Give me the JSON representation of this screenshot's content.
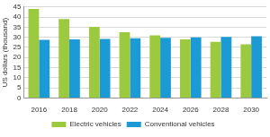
{
  "chart_data": {
    "type": "bar",
    "y_label": "US dollars (thousand)",
    "categories": [
      "2016",
      "2018",
      "2020",
      "2022",
      "2024",
      "2026",
      "2028",
      "2030"
    ],
    "series": [
      {
        "name": "Electric vehicles",
        "color": "#9bca3e",
        "values": [
          44,
          39,
          35.2,
          32.5,
          31,
          29,
          27.8,
          26.5
        ]
      },
      {
        "name": "Conventional vehicles",
        "color": "#1b9ad6",
        "values": [
          28.7,
          29,
          29.2,
          29.5,
          29.7,
          30,
          30.2,
          30.5
        ]
      }
    ],
    "ylim": [
      0,
      45
    ],
    "yticks": [
      0,
      5,
      10,
      15,
      20,
      25,
      30,
      35,
      40,
      45
    ],
    "grid": true,
    "legend": "bottom"
  }
}
